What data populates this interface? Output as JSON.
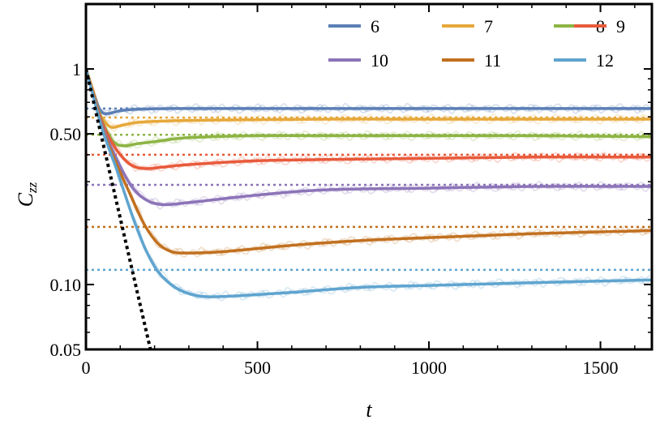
{
  "chart_data": {
    "type": "line",
    "title": "",
    "xlabel": "t",
    "ylabel": "C",
    "ylabel_sub": "zz",
    "xlim": [
      0,
      1650
    ],
    "ylim": [
      0.05,
      2.0
    ],
    "yscale": "log",
    "grid": false,
    "legend_position": "top-right",
    "x_ticks": [
      {
        "value": 0,
        "label": "0"
      },
      {
        "value": 500,
        "label": "500"
      },
      {
        "value": 1000,
        "label": "1000"
      },
      {
        "value": 1500,
        "label": "1500"
      }
    ],
    "y_ticks": [
      {
        "value": 0.05,
        "label": "0.05"
      },
      {
        "value": 0.1,
        "label": "0.10"
      },
      {
        "value": 0.5,
        "label": "0.50"
      },
      {
        "value": 1.0,
        "label": "1"
      }
    ],
    "series": [
      {
        "name": "6",
        "color": "#5b7fb6",
        "plateau": 0.655,
        "x": [
          0,
          20,
          40,
          60,
          100,
          150,
          250,
          400,
          700,
          1000,
          1300,
          1650
        ],
        "y": [
          1.0,
          0.8,
          0.65,
          0.62,
          0.64,
          0.65,
          0.655,
          0.655,
          0.655,
          0.655,
          0.655,
          0.655
        ]
      },
      {
        "name": "7",
        "color": "#e6a83a",
        "plateau": 0.595,
        "x": [
          0,
          20,
          40,
          70,
          100,
          150,
          250,
          400,
          700,
          1000,
          1300,
          1650
        ],
        "y": [
          1.0,
          0.8,
          0.62,
          0.54,
          0.545,
          0.565,
          0.575,
          0.58,
          0.585,
          0.585,
          0.585,
          0.585
        ]
      },
      {
        "name": "8",
        "color": "#8db444",
        "plateau": 0.495,
        "x": [
          0,
          20,
          50,
          80,
          110,
          150,
          200,
          300,
          500,
          700,
          1000,
          1300,
          1650
        ],
        "y": [
          1.0,
          0.78,
          0.56,
          0.46,
          0.44,
          0.45,
          0.46,
          0.48,
          0.49,
          0.49,
          0.49,
          0.49,
          0.485
        ]
      },
      {
        "name": "9",
        "color": "#e85a3b",
        "plateau": 0.4,
        "x": [
          0,
          20,
          50,
          90,
          130,
          170,
          220,
          300,
          500,
          700,
          1000,
          1300,
          1650
        ],
        "y": [
          1.0,
          0.78,
          0.55,
          0.42,
          0.36,
          0.345,
          0.35,
          0.36,
          0.375,
          0.38,
          0.385,
          0.39,
          0.39
        ]
      },
      {
        "name": "10",
        "color": "#8c74b8",
        "plateau": 0.29,
        "x": [
          0,
          20,
          50,
          90,
          130,
          170,
          220,
          300,
          500,
          700,
          1000,
          1300,
          1650
        ],
        "y": [
          1.0,
          0.77,
          0.53,
          0.38,
          0.29,
          0.25,
          0.235,
          0.24,
          0.26,
          0.275,
          0.28,
          0.285,
          0.285
        ]
      },
      {
        "name": "11",
        "color": "#c1701f",
        "plateau": 0.185,
        "x": [
          0,
          20,
          50,
          90,
          130,
          170,
          210,
          250,
          300,
          400,
          600,
          800,
          1000,
          1300,
          1650
        ],
        "y": [
          1.0,
          0.77,
          0.52,
          0.36,
          0.26,
          0.19,
          0.155,
          0.142,
          0.14,
          0.142,
          0.152,
          0.16,
          0.165,
          0.172,
          0.178
        ]
      },
      {
        "name": "12",
        "color": "#5fa4cf",
        "plateau": 0.117,
        "x": [
          0,
          20,
          50,
          90,
          130,
          170,
          210,
          260,
          320,
          400,
          600,
          800,
          1000,
          1300,
          1650
        ],
        "y": [
          1.0,
          0.76,
          0.51,
          0.34,
          0.22,
          0.15,
          0.115,
          0.097,
          0.089,
          0.088,
          0.092,
          0.097,
          0.099,
          0.102,
          0.105
        ]
      }
    ],
    "reference_line": {
      "color": "#000000",
      "x": [
        0,
        188
      ],
      "y": [
        1.0,
        0.05
      ]
    }
  }
}
